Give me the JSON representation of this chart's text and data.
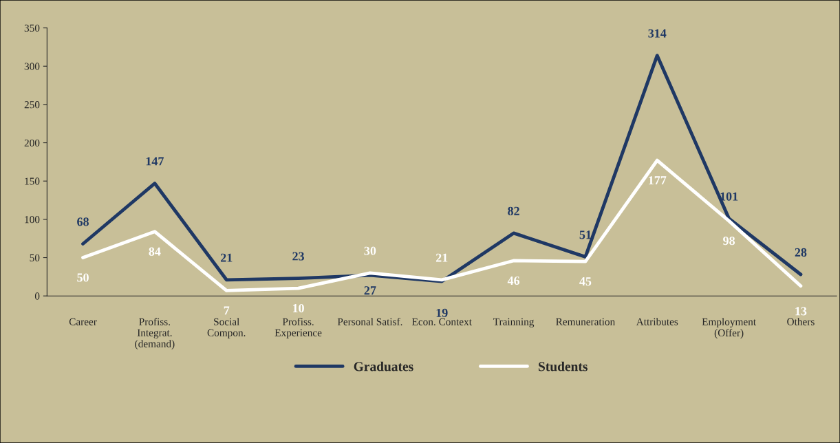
{
  "chart_data": {
    "type": "line",
    "categories": [
      "Career",
      "Profiss.\nIntegrat.\n(demand)",
      "Social\nCompon.",
      "Profiss.\nExperience",
      "Personal Satisf.",
      "Econ. Context",
      "Trainning",
      "Remuneration",
      "Attributes",
      "Employment\n(Offer)",
      "Others"
    ],
    "series": [
      {
        "name": "Graduates",
        "color": "#1f3864",
        "values": [
          68,
          147,
          21,
          23,
          27,
          19,
          82,
          51,
          314,
          101,
          28
        ]
      },
      {
        "name": "Students",
        "color": "#ffffff",
        "values": [
          50,
          84,
          7,
          10,
          30,
          21,
          46,
          45,
          177,
          98,
          13
        ]
      }
    ],
    "ylim": [
      0,
      350
    ],
    "yticks": [
      0,
      50,
      100,
      150,
      200,
      250,
      300,
      350
    ],
    "grid": false,
    "legend": "bottom",
    "marker": "none",
    "line_style": "solid",
    "data_labels": true
  }
}
